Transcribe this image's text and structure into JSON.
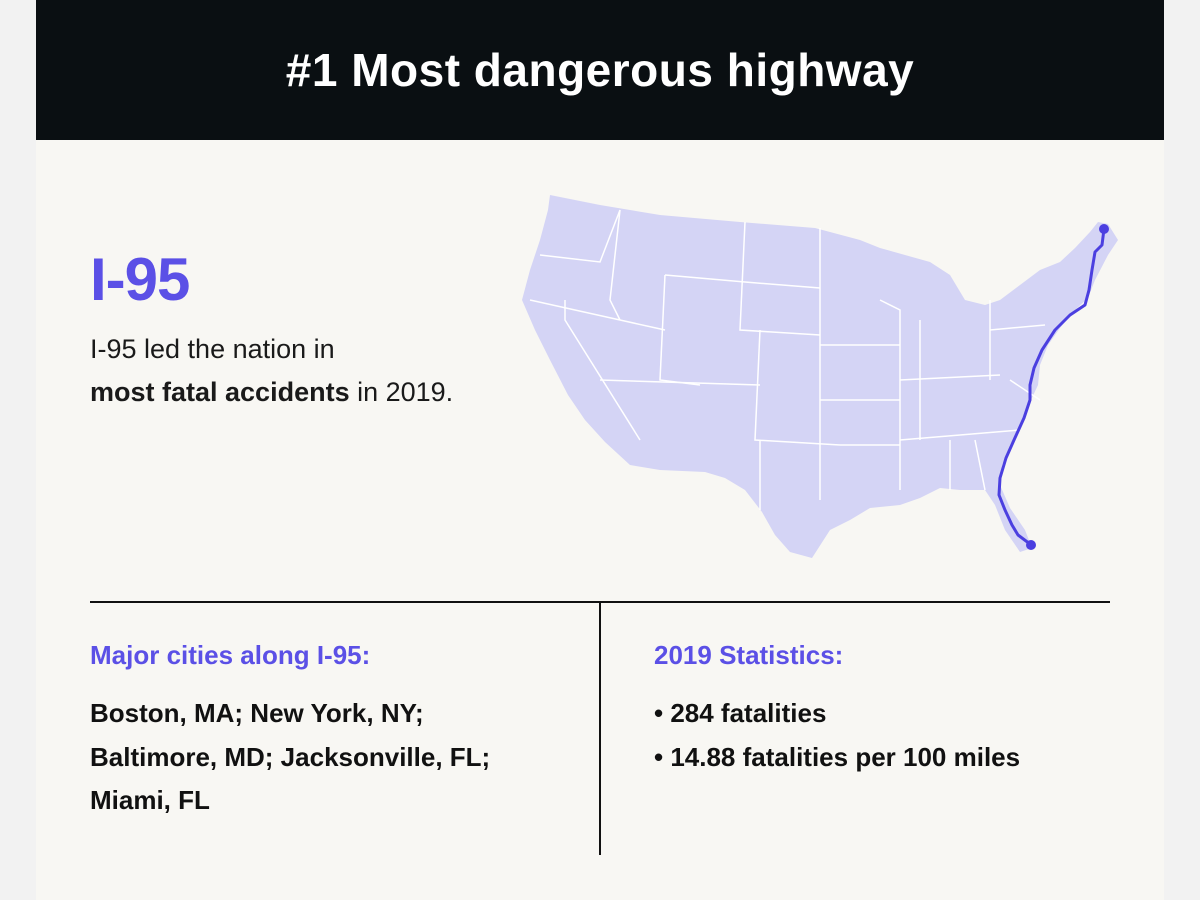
{
  "header": {
    "title": "#1 Most dangerous highway"
  },
  "highway": {
    "name": "I-95",
    "desc_prefix": "I-95 led the nation in",
    "desc_bold": "most fatal accidents",
    "desc_suffix": " in 2019."
  },
  "cities": {
    "heading": "Major cities along I-95:",
    "lines": [
      "Boston, MA; New York, NY;",
      "Baltimore, MD; Jacksonville, FL;",
      "Miami, FL"
    ]
  },
  "stats": {
    "heading": "2019 Statistics:",
    "items": [
      "• 284 fatalities",
      "• 14.88 fatalities per 100 miles"
    ]
  },
  "colors": {
    "accent": "#5b50e6",
    "map_fill": "#d4d4f5",
    "header_bg": "#0a0f12"
  }
}
